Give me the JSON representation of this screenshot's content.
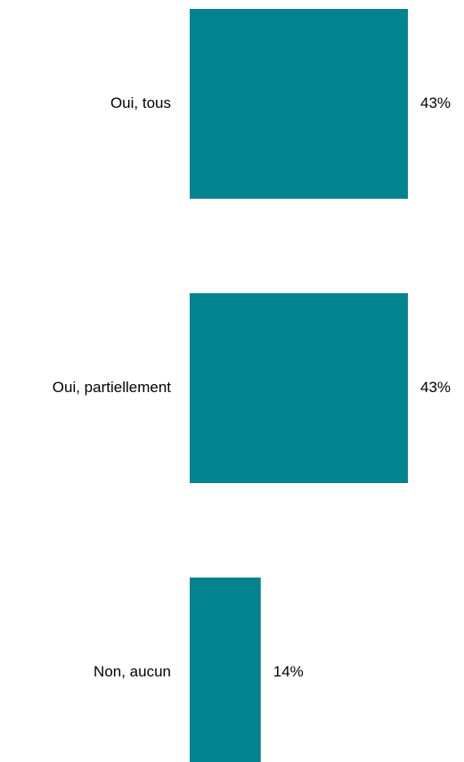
{
  "chart_data": {
    "type": "bar",
    "orientation": "horizontal",
    "categories": [
      "Oui, tous",
      "Oui, partiellement",
      "Non, aucun"
    ],
    "values": [
      43,
      43,
      14
    ],
    "value_labels": [
      "43%",
      "43%",
      "14%"
    ],
    "bar_color": "#03828F",
    "xlim": [
      0,
      43
    ],
    "grid": false,
    "legend": "none"
  }
}
